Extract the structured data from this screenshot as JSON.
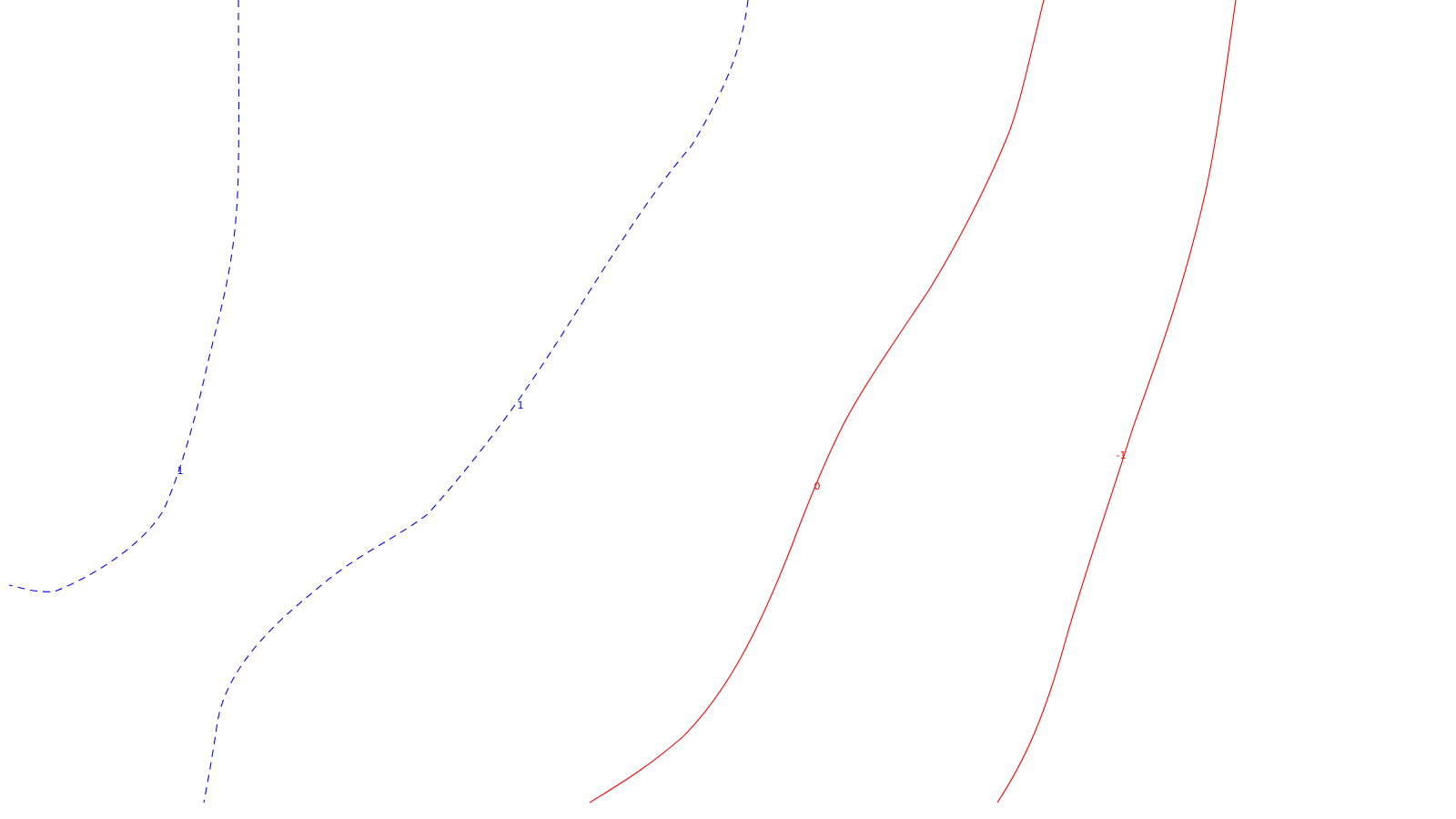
{
  "styles": {
    "positive": {
      "color": "#0000ff",
      "dash": "8,6"
    },
    "zero": {
      "color": "#ff0000",
      "dash": "none"
    },
    "negative": {
      "color": "#ff0000",
      "dash": "none"
    }
  },
  "contours": [
    {
      "id": "pos-left",
      "level": "positive",
      "label": "1"
    },
    {
      "id": "pos-middle",
      "level": "positive",
      "label": "1"
    },
    {
      "id": "zero",
      "level": "zero",
      "label": "0"
    },
    {
      "id": "neg-right",
      "level": "negative",
      "label": "-1"
    }
  ]
}
